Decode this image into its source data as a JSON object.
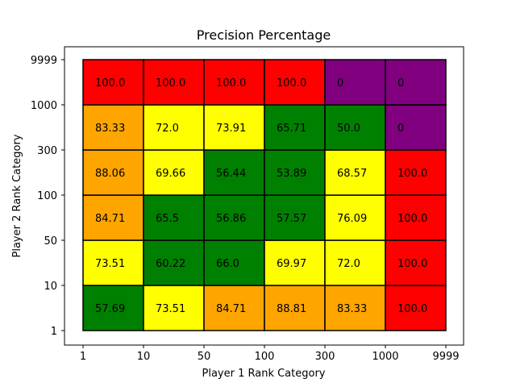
{
  "chart_data": {
    "type": "heatmap",
    "title": "Precision Percentage",
    "xlabel": "Player 1 Rank Category",
    "ylabel": "Player 2 Rank Category",
    "x_ticks": [
      "1",
      "10",
      "50",
      "100",
      "300",
      "1000",
      "9999"
    ],
    "y_ticks": [
      "1",
      "10",
      "50",
      "100",
      "300",
      "1000",
      "9999"
    ],
    "rows": [
      {
        "values": [
          "57.69",
          "73.51",
          "84.71",
          "88.81",
          "83.33",
          "100.0"
        ],
        "colors": [
          "#008000",
          "#ffff00",
          "#ffa500",
          "#ffa500",
          "#ffa500",
          "#ff0000"
        ]
      },
      {
        "values": [
          "73.51",
          "60.22",
          "66.0",
          "69.97",
          "72.0",
          "100.0"
        ],
        "colors": [
          "#ffff00",
          "#008000",
          "#008000",
          "#ffff00",
          "#ffff00",
          "#ff0000"
        ]
      },
      {
        "values": [
          "84.71",
          "65.5",
          "56.86",
          "57.57",
          "76.09",
          "100.0"
        ],
        "colors": [
          "#ffa500",
          "#008000",
          "#008000",
          "#008000",
          "#ffff00",
          "#ff0000"
        ]
      },
      {
        "values": [
          "88.06",
          "69.66",
          "56.44",
          "53.89",
          "68.57",
          "100.0"
        ],
        "colors": [
          "#ffa500",
          "#ffff00",
          "#008000",
          "#008000",
          "#ffff00",
          "#ff0000"
        ]
      },
      {
        "values": [
          "83.33",
          "72.0",
          "73.91",
          "65.71",
          "50.0",
          "0"
        ],
        "colors": [
          "#ffa500",
          "#ffff00",
          "#ffff00",
          "#008000",
          "#008000",
          "#800080"
        ]
      },
      {
        "values": [
          "100.0",
          "100.0",
          "100.0",
          "100.0",
          "0",
          "0"
        ],
        "colors": [
          "#ff0000",
          "#ff0000",
          "#ff0000",
          "#ff0000",
          "#800080",
          "#800080"
        ]
      }
    ]
  }
}
